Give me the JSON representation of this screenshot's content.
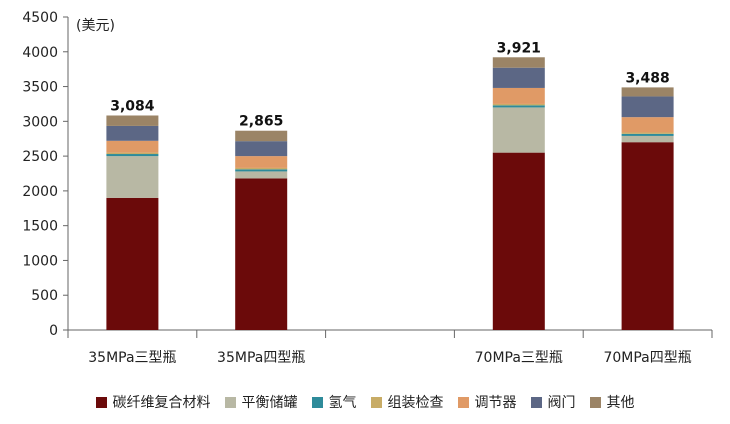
{
  "chart_data": {
    "type": "bar",
    "stacked": true,
    "ylabel": "(美元)",
    "ylim": [
      0,
      4500
    ],
    "yticks": [
      0,
      500,
      1000,
      1500,
      2000,
      2500,
      3000,
      3500,
      4000,
      4500
    ],
    "ytick_labels": [
      "0",
      "500",
      "1000",
      "1500",
      "2000",
      "2500",
      "3000",
      "3500",
      "4000",
      "4500"
    ],
    "categories": [
      "35MPa三型瓶",
      "35MPa四型瓶",
      "",
      "70MPa三型瓶",
      "70MPa四型瓶"
    ],
    "totals": [
      3084,
      2865,
      null,
      3921,
      3488
    ],
    "total_labels": [
      "3,084",
      "2,865",
      "",
      "3,921",
      "3,488"
    ],
    "series": [
      {
        "name": "碳纤维复合材料",
        "color": "#6b0a0a",
        "values": [
          1900,
          2180,
          null,
          2550,
          2700
        ]
      },
      {
        "name": "平衡储罐",
        "color": "#b8b8a4",
        "values": [
          600,
          100,
          null,
          650,
          90
        ]
      },
      {
        "name": "氢气",
        "color": "#2e8b9a",
        "values": [
          30,
          30,
          null,
          30,
          30
        ]
      },
      {
        "name": "组装检查",
        "color": "#c8ac66",
        "values": [
          20,
          20,
          null,
          20,
          20
        ]
      },
      {
        "name": "调节器",
        "color": "#e09a66",
        "values": [
          170,
          170,
          null,
          230,
          220
        ]
      },
      {
        "name": "阀门",
        "color": "#5c6785",
        "values": [
          214,
          215,
          null,
          291,
          298
        ]
      },
      {
        "name": "其他",
        "color": "#9b8466",
        "values": [
          150,
          150,
          null,
          150,
          130
        ]
      }
    ],
    "grid": false,
    "legend_position": "bottom"
  }
}
